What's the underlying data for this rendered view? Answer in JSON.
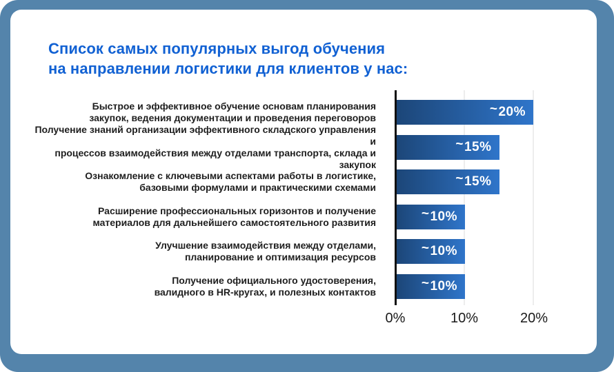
{
  "colors": {
    "frame_background": "#5484ab",
    "card_background": "#ffffff",
    "title_text": "#1161d3",
    "category_text": "#1e1e1e",
    "bar_gradient_start": "#1c4678",
    "bar_gradient_end": "#2f75ca",
    "bar_value_text": "#ffffff",
    "axis_line": "#101010",
    "gridline": "#ededed",
    "tick_text": "#1a1a1a"
  },
  "title": {
    "line1": "Список самых популярных выгод обучения",
    "line2": "на направлении логистики для клиентов у нас:"
  },
  "chart_data": {
    "type": "bar",
    "orientation": "horizontal",
    "title": "Список самых популярных выгод обучения на направлении логистики для клиентов у нас:",
    "categories": [
      "Быстрое и эффективное обучение основам планирования закупок, ведения документации и проведения переговоров",
      "Получение знаний организации эффективного складского управления и процессов взаимодействия между отделами транспорта, склада и закупок",
      "Ознакомление с ключевыми аспектами работы в логистике, базовыми формулами и практическими схемами",
      "Расширение профессиональных горизонтов и получение материалов для дальнейшего самостоятельного развития",
      "Улучшение взаимодействия между отделами, планирование и оптимизация ресурсов",
      "Получение официального удостоверения, валидного в HR-кругах, и полезных контактов"
    ],
    "category_lines": [
      [
        "Быстрое и эффективное обучение основам планирования",
        "закупок, ведения документации и проведения переговоров"
      ],
      [
        "Получение знаний организации эффективного складского управления и",
        "процессов взаимодействия между отделами транспорта, склада и закупок"
      ],
      [
        "Ознакомление с ключевыми аспектами работы в логистике,",
        "базовыми формулами и практическими схемами"
      ],
      [
        "Расширение профессиональных горизонтов и получение",
        "материалов для дальнейшего самостоятельного развития"
      ],
      [
        "Улучшение взаимодействия между отделами,",
        "планирование и оптимизация ресурсов"
      ],
      [
        "Получение официального удостоверения,",
        "валидного в HR-кругах, и полезных контактов"
      ]
    ],
    "values": [
      20,
      15,
      15,
      10,
      10,
      10
    ],
    "values_approximate": true,
    "value_labels": [
      {
        "prefix": "~",
        "value": "20%"
      },
      {
        "prefix": "~",
        "value": "15%"
      },
      {
        "prefix": "~",
        "value": "15%"
      },
      {
        "prefix": "~",
        "value": "10%"
      },
      {
        "prefix": "~",
        "value": "10%"
      },
      {
        "prefix": "~",
        "value": "10%"
      }
    ],
    "x_ticks": [
      "0%",
      "10%",
      "20%"
    ],
    "xlim": [
      0,
      20
    ],
    "grid": true,
    "legend": false,
    "xlabel": "",
    "ylabel": ""
  }
}
